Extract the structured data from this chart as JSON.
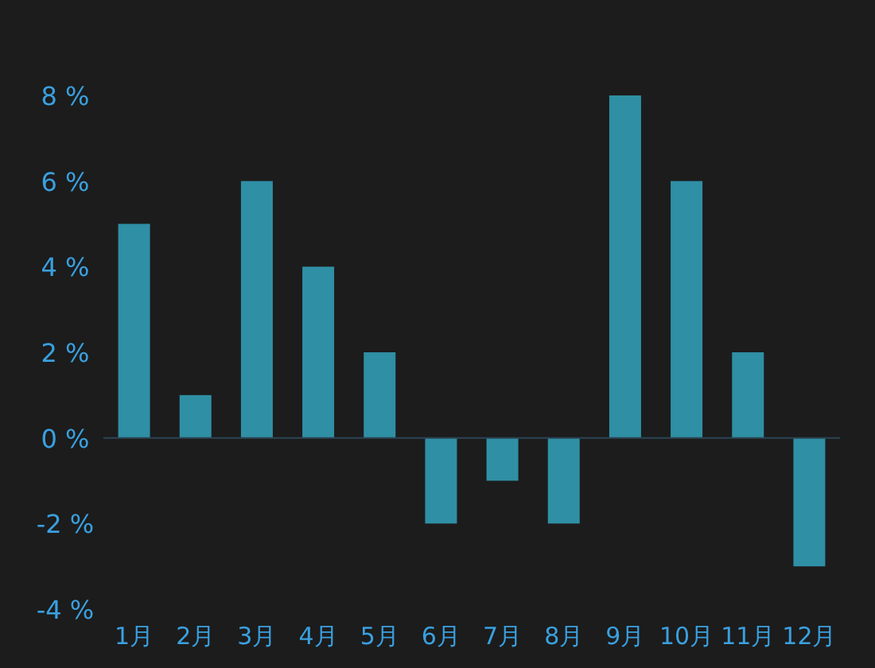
{
  "chart_data": {
    "type": "bar",
    "categories": [
      "1月",
      "2月",
      "3月",
      "4月",
      "5月",
      "6月",
      "7月",
      "8月",
      "9月",
      "10月",
      "11月",
      "12月"
    ],
    "values": [
      5,
      1,
      6,
      4,
      2,
      -2,
      -1,
      -2,
      8,
      6,
      2,
      -3
    ],
    "color": "#2f8fa5",
    "ylim": [
      -4,
      8
    ],
    "yticks": [
      {
        "value": -4,
        "label": "-4 %"
      },
      {
        "value": -2,
        "label": "-2 %"
      },
      {
        "value": 0,
        "label": "0 %"
      },
      {
        "value": 2,
        "label": "2 %"
      },
      {
        "value": 4,
        "label": "4 %"
      },
      {
        "value": 6,
        "label": "6 %"
      },
      {
        "value": 8,
        "label": "8 %"
      }
    ],
    "grid": false
  }
}
